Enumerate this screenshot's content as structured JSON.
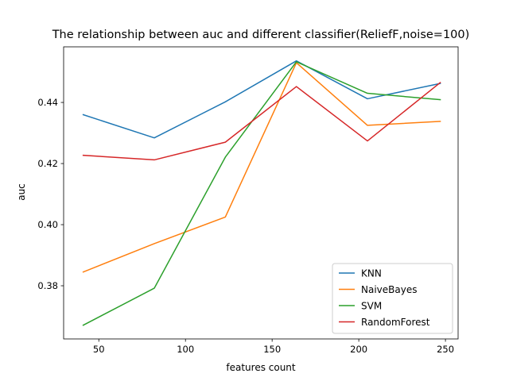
{
  "chart_data": {
    "type": "line",
    "title": "The relationship between auc and different classifier(ReliefF,noise=100)",
    "xlabel": "features count",
    "ylabel": "auc",
    "xlim": [
      29.7,
      257.3
    ],
    "ylim": [
      0.3626,
      0.4582
    ],
    "xticks": [
      50,
      100,
      150,
      200,
      250
    ],
    "yticks": [
      0.38,
      0.4,
      0.42,
      0.44
    ],
    "ytick_labels": [
      "0.38",
      "0.40",
      "0.42",
      "0.44"
    ],
    "grid": false,
    "legend_position": "lower-right",
    "x": [
      41,
      82,
      123,
      164,
      205,
      247
    ],
    "series": [
      {
        "name": "KNN",
        "color": "#1f77b4",
        "values": [
          0.436,
          0.4284,
          0.4402,
          0.4536,
          0.4412,
          0.4462
        ]
      },
      {
        "name": "NaiveBayes",
        "color": "#ff7f0e",
        "values": [
          0.3845,
          0.3938,
          0.4025,
          0.453,
          0.4325,
          0.4338
        ]
      },
      {
        "name": "SVM",
        "color": "#2ca02c",
        "values": [
          0.3671,
          0.3792,
          0.4221,
          0.4533,
          0.443,
          0.4409
        ]
      },
      {
        "name": "RandomForest",
        "color": "#d62728",
        "values": [
          0.4227,
          0.4212,
          0.427,
          0.4452,
          0.4274,
          0.4465
        ]
      }
    ]
  }
}
